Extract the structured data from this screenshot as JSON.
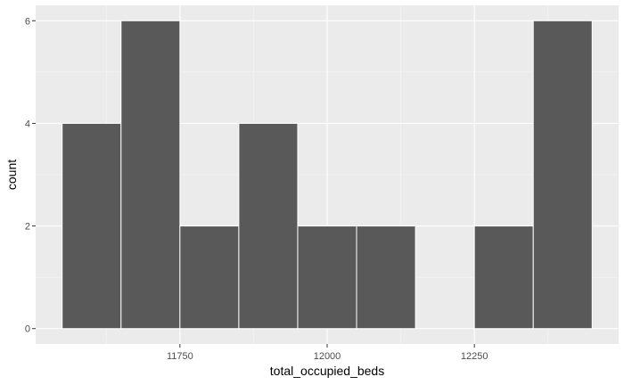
{
  "chart_data": {
    "type": "bar",
    "subtype": "histogram",
    "xlabel": "total_occupied_beds",
    "ylabel": "count",
    "bins": [
      {
        "start": 11550,
        "end": 11650,
        "count": 4
      },
      {
        "start": 11650,
        "end": 11750,
        "count": 6
      },
      {
        "start": 11750,
        "end": 11850,
        "count": 2
      },
      {
        "start": 11850,
        "end": 11950,
        "count": 4
      },
      {
        "start": 11950,
        "end": 12050,
        "count": 2
      },
      {
        "start": 12050,
        "end": 12150,
        "count": 2
      },
      {
        "start": 12150,
        "end": 12250,
        "count": 0
      },
      {
        "start": 12250,
        "end": 12350,
        "count": 2
      },
      {
        "start": 12350,
        "end": 12450,
        "count": 6
      }
    ],
    "xlim": [
      11505,
      12495
    ],
    "ylim": [
      -0.3,
      6.3
    ],
    "x_ticks": [
      11750,
      12000,
      12250
    ],
    "x_tick_labels": [
      "11750",
      "12000",
      "12250"
    ],
    "x_minor_ticks": [
      11625,
      11875,
      12125,
      12375
    ],
    "y_ticks": [
      0,
      2,
      4,
      6
    ],
    "y_tick_labels": [
      "0",
      "2",
      "4",
      "6"
    ],
    "y_minor_ticks": [
      1,
      3,
      5
    ],
    "grid": true,
    "legend": "none",
    "colors": {
      "panel_background": "#ebebeb",
      "grid_major": "#ffffff",
      "grid_minor": "#f5f5f5",
      "bar_fill": "#595959",
      "bar_outline": "#ffffff",
      "tick_text": "#4d4d4d",
      "axis_title": "#000000"
    }
  }
}
